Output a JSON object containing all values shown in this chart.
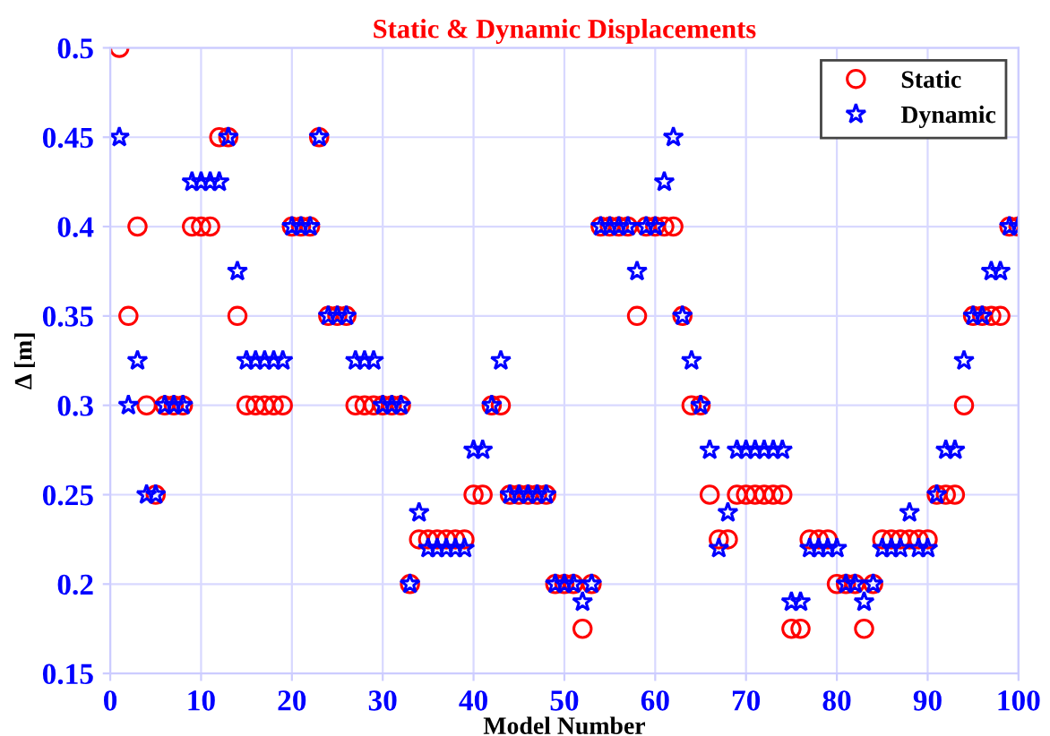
{
  "chart_data": {
    "type": "scatter",
    "title": "Static & Dynamic Displacements",
    "xlabel": "Model Number",
    "ylabel": "Δ [m]",
    "x": [
      1,
      2,
      3,
      4,
      5,
      6,
      7,
      8,
      9,
      10,
      11,
      12,
      13,
      14,
      15,
      16,
      17,
      18,
      19,
      20,
      21,
      22,
      23,
      24,
      25,
      26,
      27,
      28,
      29,
      30,
      31,
      32,
      33,
      34,
      35,
      36,
      37,
      38,
      39,
      40,
      41,
      42,
      43,
      44,
      45,
      46,
      47,
      48,
      49,
      50,
      51,
      52,
      53,
      54,
      55,
      56,
      57,
      58,
      59,
      60,
      61,
      62,
      63,
      64,
      65,
      66,
      67,
      68,
      69,
      70,
      71,
      72,
      73,
      74,
      75,
      76,
      77,
      78,
      79,
      80,
      81,
      82,
      83,
      84,
      85,
      86,
      87,
      88,
      89,
      90,
      91,
      92,
      93,
      94,
      95,
      96,
      97,
      98,
      99,
      100
    ],
    "series": [
      {
        "name": "Static",
        "color": "#ff0000",
        "marker": "circle",
        "values": [
          0.5,
          0.35,
          0.4,
          0.3,
          0.25,
          0.3,
          0.3,
          0.3,
          0.4,
          0.4,
          0.4,
          0.45,
          0.45,
          0.35,
          0.3,
          0.3,
          0.3,
          0.3,
          0.3,
          0.4,
          0.4,
          0.4,
          0.45,
          0.35,
          0.35,
          0.35,
          0.3,
          0.3,
          0.3,
          0.3,
          0.3,
          0.3,
          0.2,
          0.225,
          0.225,
          0.225,
          0.225,
          0.225,
          0.225,
          0.25,
          0.25,
          0.3,
          0.3,
          0.25,
          0.25,
          0.25,
          0.25,
          0.25,
          0.2,
          0.2,
          0.2,
          0.175,
          0.2,
          0.4,
          0.4,
          0.4,
          0.4,
          0.35,
          0.4,
          0.4,
          0.4,
          0.4,
          0.35,
          0.3,
          0.3,
          0.25,
          0.225,
          0.225,
          0.25,
          0.25,
          0.25,
          0.25,
          0.25,
          0.25,
          0.175,
          0.175,
          0.225,
          0.225,
          0.225,
          0.2,
          0.2,
          0.2,
          0.175,
          0.2,
          0.225,
          0.225,
          0.225,
          0.225,
          0.225,
          0.225,
          0.25,
          0.25,
          0.25,
          0.3,
          0.35,
          0.35,
          0.35,
          0.35,
          0.4,
          0.4
        ]
      },
      {
        "name": "Dynamic",
        "color": "#0000ff",
        "marker": "star",
        "values": [
          0.45,
          0.3,
          0.325,
          0.25,
          0.25,
          0.3,
          0.3,
          0.3,
          0.425,
          0.425,
          0.425,
          0.425,
          0.45,
          0.375,
          0.325,
          0.325,
          0.325,
          0.325,
          0.325,
          0.4,
          0.4,
          0.4,
          0.45,
          0.35,
          0.35,
          0.35,
          0.325,
          0.325,
          0.325,
          0.3,
          0.3,
          0.3,
          0.2,
          0.24,
          0.22,
          0.22,
          0.22,
          0.22,
          0.22,
          0.275,
          0.275,
          0.3,
          0.325,
          0.25,
          0.25,
          0.25,
          0.25,
          0.25,
          0.2,
          0.2,
          0.2,
          0.19,
          0.2,
          0.4,
          0.4,
          0.4,
          0.4,
          0.375,
          0.4,
          0.4,
          0.425,
          0.45,
          0.35,
          0.325,
          0.3,
          0.275,
          0.22,
          0.24,
          0.275,
          0.275,
          0.275,
          0.275,
          0.275,
          0.275,
          0.19,
          0.19,
          0.22,
          0.22,
          0.22,
          0.22,
          0.2,
          0.2,
          0.19,
          0.2,
          0.22,
          0.22,
          0.22,
          0.24,
          0.22,
          0.22,
          0.25,
          0.275,
          0.275,
          0.325,
          0.35,
          0.35,
          0.375,
          0.375,
          0.4,
          0.4
        ]
      }
    ],
    "xlim": [
      0,
      100
    ],
    "xticks": [
      0,
      10,
      20,
      30,
      40,
      50,
      60,
      70,
      80,
      90,
      100
    ],
    "ylim": [
      0.15,
      0.5
    ],
    "yticks": [
      0.15,
      0.2,
      0.25,
      0.3,
      0.35,
      0.4,
      0.45,
      0.5
    ],
    "grid": true,
    "legend": "top right"
  }
}
